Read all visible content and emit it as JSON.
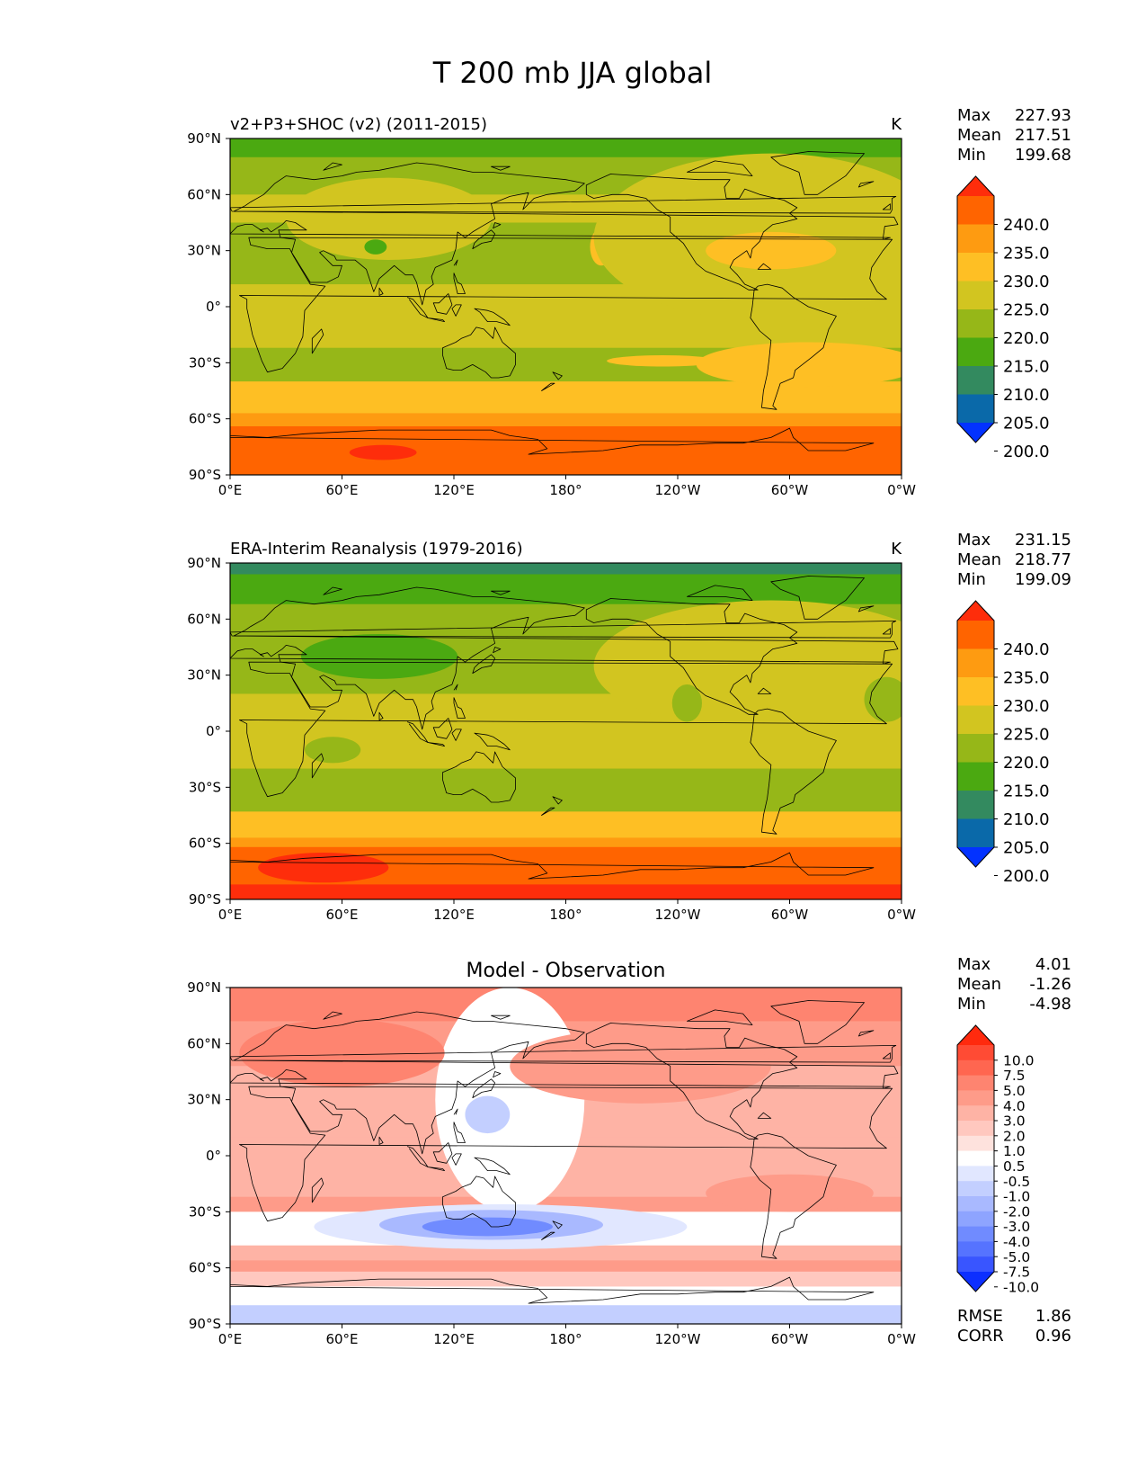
{
  "figure": {
    "title": "T 200 mb JJA global"
  },
  "axes": {
    "x_ticks": [
      "0°E",
      "60°E",
      "120°E",
      "180°",
      "120°W",
      "60°W",
      "0°W"
    ],
    "y_ticks": [
      "90°N",
      "60°N",
      "30°N",
      "0°",
      "30°S",
      "60°S",
      "90°S"
    ]
  },
  "panels": [
    {
      "id": "model",
      "title_left": "v2+P3+SHOC (v2) (2011-2015)",
      "title_center": "",
      "units": "K",
      "stats": [
        {
          "label": "Max",
          "value": "227.93"
        },
        {
          "label": "Mean",
          "value": "217.51"
        },
        {
          "label": "Min",
          "value": "199.68"
        }
      ],
      "colorbar": {
        "labels": [
          "240.0",
          "235.0",
          "230.0",
          "225.0",
          "220.0",
          "215.0",
          "210.0",
          "205.0",
          "200.0"
        ],
        "colors": [
          "#fe2d0b",
          "#ff6400",
          "#fe9b11",
          "#febf24",
          "#d2c520",
          "#96b718",
          "#4ba911",
          "#338a5f",
          "#0a69a9",
          "#0332ff"
        ]
      },
      "bands": [
        {
          "lat": [
            90,
            80
          ],
          "level": 3
        },
        {
          "lat": [
            80,
            60
          ],
          "level": 4
        },
        {
          "lat": [
            60,
            45
          ],
          "level": 5
        },
        {
          "lat": [
            45,
            12
          ],
          "level": 4
        },
        {
          "lat": [
            12,
            -22
          ],
          "level": 5
        },
        {
          "lat": [
            -22,
            -40
          ],
          "level": 4
        },
        {
          "lat": [
            -40,
            -57
          ],
          "level": 6
        },
        {
          "lat": [
            -57,
            -64
          ],
          "level": 7
        },
        {
          "lat": [
            -64,
            -90
          ],
          "level": 8
        }
      ],
      "extras": [
        {
          "lon": 85,
          "lat": 47,
          "rx": 55,
          "ry": 22,
          "level": 5
        },
        {
          "lon": 300,
          "lat": 42,
          "rx": 60,
          "ry": 12,
          "level": 6
        },
        {
          "lon": 78,
          "lat": 32,
          "rx": 6,
          "ry": 4,
          "level": 3
        },
        {
          "lon": 199,
          "lat": 32,
          "rx": 6,
          "ry": 10,
          "level": 6
        },
        {
          "lon": 290,
          "lat": 37,
          "rx": 95,
          "ry": 45,
          "level": 5
        },
        {
          "lon": 290,
          "lat": 30,
          "rx": 35,
          "ry": 10,
          "level": 6
        },
        {
          "lon": 232,
          "lat": -29,
          "rx": 30,
          "ry": 3,
          "level": 6
        },
        {
          "lon": 310,
          "lat": -31,
          "rx": 60,
          "ry": 12,
          "level": 6
        },
        {
          "lon": 82,
          "lat": -78,
          "rx": 18,
          "ry": 4,
          "level": 9
        }
      ]
    },
    {
      "id": "obs",
      "title_left": "ERA-Interim Reanalysis (1979-2016)",
      "title_center": "",
      "units": "K",
      "stats": [
        {
          "label": "Max",
          "value": "231.15"
        },
        {
          "label": "Mean",
          "value": "218.77"
        },
        {
          "label": "Min",
          "value": "199.09"
        }
      ],
      "colorbar": {
        "labels": [
          "240.0",
          "235.0",
          "230.0",
          "225.0",
          "220.0",
          "215.0",
          "210.0",
          "205.0",
          "200.0"
        ],
        "colors": [
          "#fe2d0b",
          "#ff6400",
          "#fe9b11",
          "#febf24",
          "#d2c520",
          "#96b718",
          "#4ba911",
          "#338a5f",
          "#0a69a9",
          "#0332ff"
        ]
      },
      "bands": [
        {
          "lat": [
            90,
            84
          ],
          "level": 2
        },
        {
          "lat": [
            84,
            68
          ],
          "level": 3
        },
        {
          "lat": [
            68,
            20
          ],
          "level": 4
        },
        {
          "lat": [
            20,
            -20
          ],
          "level": 5
        },
        {
          "lat": [
            -20,
            -43
          ],
          "level": 4
        },
        {
          "lat": [
            -43,
            -57
          ],
          "level": 6
        },
        {
          "lat": [
            -57,
            -62
          ],
          "level": 7
        },
        {
          "lat": [
            -62,
            -82
          ],
          "level": 8
        },
        {
          "lat": [
            -82,
            -90
          ],
          "level": 9
        }
      ],
      "extras": [
        {
          "lon": 290,
          "lat": 35,
          "rx": 95,
          "ry": 35,
          "level": 5
        },
        {
          "lon": 80,
          "lat": 40,
          "rx": 42,
          "ry": 12,
          "level": 3
        },
        {
          "lon": 245,
          "lat": 15,
          "rx": 8,
          "ry": 10,
          "level": 4
        },
        {
          "lon": 352,
          "lat": 17,
          "rx": 12,
          "ry": 12,
          "level": 4
        },
        {
          "lon": 55,
          "lat": -10,
          "rx": 15,
          "ry": 7,
          "level": 4
        },
        {
          "lon": 50,
          "lat": -73,
          "rx": 35,
          "ry": 8,
          "level": 9
        }
      ]
    },
    {
      "id": "diff",
      "title_left": "",
      "title_center": "Model - Observation",
      "units": "",
      "stats": [
        {
          "label": "Max",
          "value": "4.01"
        },
        {
          "label": "Mean",
          "value": "-1.26"
        },
        {
          "label": "Min",
          "value": "-4.98"
        }
      ],
      "colorbar": {
        "labels": [
          "10.0",
          "7.5",
          "5.0",
          "4.0",
          "3.0",
          "2.0",
          "1.0",
          "0.5",
          "-0.5",
          "-1.0",
          "-2.0",
          "-3.0",
          "-4.0",
          "-5.0",
          "-7.5",
          "-10.0"
        ],
        "colors": [
          "#ff2a0e",
          "#ff4b34",
          "#ff6650",
          "#fe8470",
          "#fe9b89",
          "#feb3a5",
          "#ffc8bf",
          "#fee2dd",
          "#ffffff",
          "#e1e7ff",
          "#c3cfff",
          "#a9b9ff",
          "#8ea4ff",
          "#708bff",
          "#5673ff",
          "#3955ff",
          "#0c2fff"
        ]
      },
      "stats_bottom": [
        {
          "label": "RMSE",
          "value": "1.86"
        },
        {
          "label": "CORR",
          "value": "0.96"
        }
      ],
      "bands": [
        {
          "lat": [
            90,
            72
          ],
          "level": 13
        },
        {
          "lat": [
            72,
            48
          ],
          "level": 12
        },
        {
          "lat": [
            48,
            10
          ],
          "level": 11
        },
        {
          "lat": [
            10,
            -22
          ],
          "level": 11
        },
        {
          "lat": [
            -22,
            -30
          ],
          "level": 12
        },
        {
          "lat": [
            -30,
            -48
          ],
          "level": 8
        },
        {
          "lat": [
            -48,
            -56
          ],
          "level": 11
        },
        {
          "lat": [
            -56,
            -62
          ],
          "level": 12
        },
        {
          "lat": [
            -62,
            -70
          ],
          "level": 10
        },
        {
          "lat": [
            -70,
            -80
          ],
          "level": 8
        },
        {
          "lat": [
            -80,
            -90
          ],
          "level": 6
        }
      ],
      "extras": [
        {
          "lon": 150,
          "lat": 30,
          "rx": 40,
          "ry": 60,
          "level": 8
        },
        {
          "lon": 138,
          "lat": 22,
          "rx": 12,
          "ry": 10,
          "level": 6
        },
        {
          "lon": 220,
          "lat": 48,
          "rx": 70,
          "ry": 20,
          "level": 12
        },
        {
          "lon": 60,
          "lat": 55,
          "rx": 55,
          "ry": 18,
          "level": 13
        },
        {
          "lon": 300,
          "lat": -20,
          "rx": 45,
          "ry": 10,
          "level": 12
        },
        {
          "lon": 145,
          "lat": -38,
          "rx": 100,
          "ry": 12,
          "level": 7
        },
        {
          "lon": 140,
          "lat": -37,
          "rx": 60,
          "ry": 8,
          "level": 5
        },
        {
          "lon": 138,
          "lat": -38,
          "rx": 35,
          "ry": 5,
          "level": 3
        }
      ]
    }
  ]
}
